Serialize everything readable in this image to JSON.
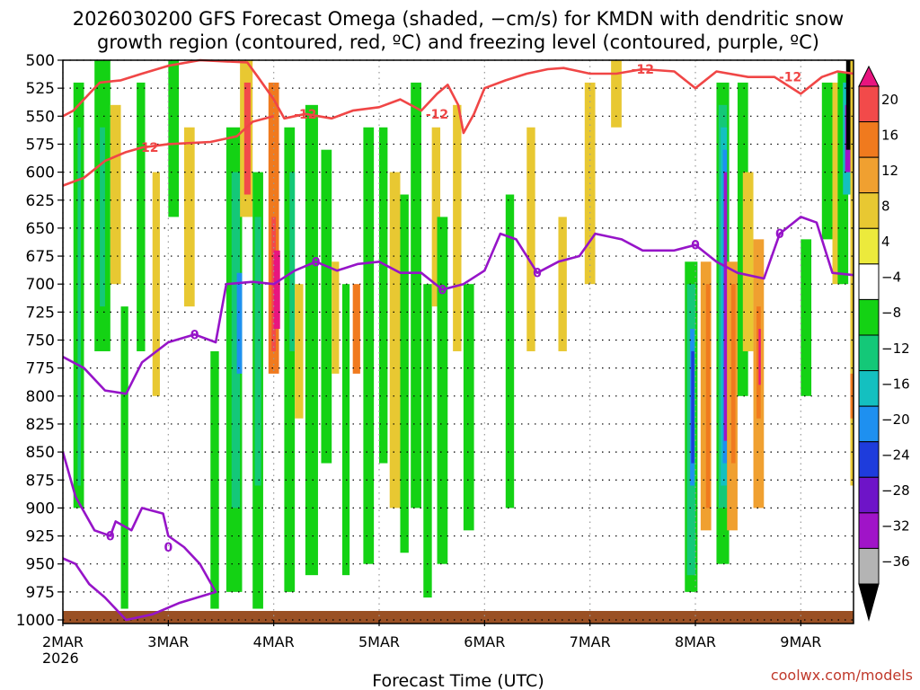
{
  "chart_data": {
    "type": "heatmap",
    "title": "2026030200 GFS Forecast Omega (shaded, −cm/s) for KMDN with dendritic snow",
    "subtitle": "growth region (contoured, red, ºC) and freezing level (contoured, purple, ºC)",
    "xlabel": "Forecast Time (UTC)",
    "ylabel": "",
    "credit": "coolwx.com/models",
    "x_ticks": [
      "2MAR",
      "3MAR",
      "4MAR",
      "5MAR",
      "6MAR",
      "7MAR",
      "8MAR",
      "9MAR"
    ],
    "x_year": "2026",
    "y_ticks": [
      "500",
      "525",
      "550",
      "575",
      "600",
      "625",
      "650",
      "675",
      "700",
      "725",
      "750",
      "775",
      "800",
      "825",
      "850",
      "875",
      "900",
      "925",
      "950",
      "975",
      "1000"
    ],
    "xlim_days": [
      2,
      9.5
    ],
    "ylim_hpa": [
      500,
      1000
    ],
    "y_reversed": true,
    "grid": true,
    "colorbar": {
      "levels": [
        "20",
        "16",
        "12",
        "8",
        "4",
        "−4",
        "−8",
        "−12",
        "−16",
        "−20",
        "−24",
        "−28",
        "−32",
        "−36"
      ],
      "colors": [
        "#e8157f",
        "#f24a4a",
        "#f07a1e",
        "#f0a030",
        "#e8c832",
        "#ecea3c",
        "#ffffff",
        "#14d214",
        "#14c878",
        "#14c0c0",
        "#1e90f0",
        "#1e3cdc",
        "#6e14c8",
        "#a014c8",
        "#b4b4b4",
        "#000000"
      ]
    },
    "series": [
      {
        "label": "-12",
        "color": "#f04646",
        "contours": [
          {
            "points": [
              [
                2.0,
                550
              ],
              [
                2.1,
                545
              ],
              [
                2.25,
                530
              ],
              [
                2.35,
                520
              ],
              [
                2.55,
                518
              ],
              [
                2.75,
                512
              ],
              [
                3.0,
                505
              ],
              [
                3.3,
                500
              ],
              [
                3.75,
                502
              ],
              [
                3.85,
                515
              ],
              [
                4.0,
                535
              ],
              [
                4.1,
                552
              ],
              [
                4.3,
                548
              ],
              [
                4.55,
                552
              ],
              [
                4.75,
                545
              ],
              [
                5.0,
                542
              ],
              [
                5.2,
                535
              ],
              [
                5.4,
                545
              ],
              [
                5.55,
                530
              ],
              [
                5.65,
                522
              ],
              [
                5.75,
                540
              ],
              [
                5.8,
                565
              ],
              [
                5.9,
                548
              ],
              [
                6.0,
                525
              ],
              [
                6.2,
                518
              ],
              [
                6.4,
                512
              ],
              [
                6.6,
                508
              ],
              [
                6.75,
                507
              ],
              [
                7.0,
                512
              ],
              [
                7.25,
                512
              ],
              [
                7.5,
                508
              ],
              [
                7.8,
                510
              ],
              [
                8.0,
                525
              ],
              [
                8.2,
                510
              ],
              [
                8.5,
                515
              ],
              [
                8.75,
                515
              ],
              [
                9.0,
                530
              ],
              [
                9.2,
                515
              ],
              [
                9.35,
                510
              ],
              [
                9.5,
                512
              ]
            ],
            "labels": [
              [
                4.3,
                548
              ],
              [
                5.55,
                548
              ],
              [
                7.5,
                508
              ],
              [
                8.9,
                515
              ]
            ]
          },
          {
            "points": [
              [
                2.0,
                612
              ],
              [
                2.2,
                605
              ],
              [
                2.4,
                590
              ],
              [
                2.6,
                582
              ],
              [
                2.75,
                578
              ],
              [
                3.0,
                575
              ],
              [
                3.4,
                573
              ],
              [
                3.65,
                568
              ],
              [
                3.8,
                555
              ],
              [
                4.0,
                550
              ]
            ],
            "labels": [
              [
                2.8,
                578
              ]
            ]
          }
        ]
      },
      {
        "label": "0",
        "color": "#9614c8",
        "contours": [
          {
            "points": [
              [
                2.0,
                765
              ],
              [
                2.2,
                775
              ],
              [
                2.4,
                795
              ],
              [
                2.6,
                798
              ],
              [
                2.75,
                770
              ],
              [
                3.0,
                752
              ],
              [
                3.25,
                745
              ],
              [
                3.45,
                752
              ],
              [
                3.55,
                700
              ],
              [
                3.8,
                698
              ],
              [
                4.0,
                700
              ],
              [
                4.2,
                688
              ],
              [
                4.4,
                680
              ],
              [
                4.6,
                688
              ],
              [
                4.8,
                682
              ],
              [
                5.0,
                680
              ],
              [
                5.2,
                690
              ],
              [
                5.4,
                690
              ],
              [
                5.6,
                705
              ],
              [
                5.8,
                700
              ],
              [
                6.0,
                688
              ],
              [
                6.15,
                655
              ],
              [
                6.3,
                660
              ],
              [
                6.5,
                690
              ],
              [
                6.7,
                680
              ],
              [
                6.9,
                675
              ],
              [
                7.05,
                655
              ],
              [
                7.3,
                660
              ],
              [
                7.5,
                670
              ],
              [
                7.8,
                670
              ],
              [
                8.0,
                665
              ],
              [
                8.2,
                680
              ],
              [
                8.4,
                690
              ],
              [
                8.65,
                695
              ],
              [
                8.8,
                655
              ],
              [
                9.0,
                640
              ],
              [
                9.15,
                645
              ],
              [
                9.3,
                690
              ],
              [
                9.5,
                692
              ]
            ],
            "labels": [
              [
                3.25,
                745
              ],
              [
                4.4,
                680
              ],
              [
                5.6,
                705
              ],
              [
                6.5,
                690
              ],
              [
                8.0,
                665
              ],
              [
                8.8,
                655
              ]
            ]
          },
          {
            "points": [
              [
                2.0,
                850
              ],
              [
                2.12,
                890
              ],
              [
                2.3,
                920
              ],
              [
                2.45,
                925
              ],
              [
                2.5,
                912
              ],
              [
                2.65,
                920
              ],
              [
                2.75,
                900
              ],
              [
                2.95,
                905
              ],
              [
                3.0,
                925
              ],
              [
                3.15,
                935
              ],
              [
                3.3,
                950
              ],
              [
                3.45,
                975
              ],
              [
                3.1,
                985
              ],
              [
                2.85,
                995
              ],
              [
                2.6,
                1000
              ],
              [
                2.4,
                980
              ],
              [
                2.25,
                968
              ],
              [
                2.12,
                950
              ],
              [
                2.0,
                945
              ]
            ],
            "labels": [
              [
                2.45,
                925
              ],
              [
                3.0,
                935
              ]
            ]
          }
        ]
      }
    ],
    "shading_note": "Shaded omega in −cm/s along vertical bands; positive (rising motion) warm colors near 4MAR 700–775 hPa and 8MAR–9MAR 650–925 hPa; negative green/blue/purple bands throughout, strongest near 8MAR–8.4MAR and 9.4MAR 525–650 hPa."
  }
}
